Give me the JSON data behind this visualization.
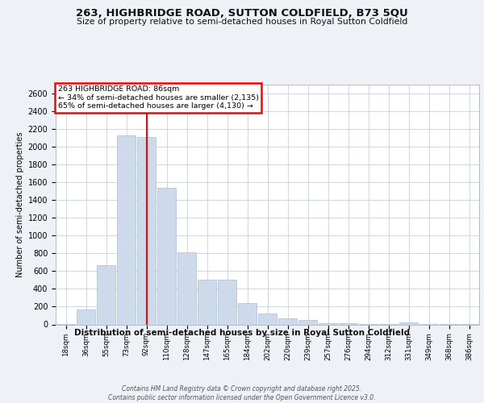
{
  "title": "263, HIGHBRIDGE ROAD, SUTTON COLDFIELD, B73 5QU",
  "subtitle": "Size of property relative to semi-detached houses in Royal Sutton Coldfield",
  "xlabel": "Distribution of semi-detached houses by size in Royal Sutton Coldfield",
  "ylabel": "Number of semi-detached properties",
  "bin_labels": [
    "18sqm",
    "36sqm",
    "55sqm",
    "73sqm",
    "92sqm",
    "110sqm",
    "128sqm",
    "147sqm",
    "165sqm",
    "184sqm",
    "202sqm",
    "220sqm",
    "239sqm",
    "257sqm",
    "276sqm",
    "294sqm",
    "312sqm",
    "331sqm",
    "349sqm",
    "368sqm",
    "386sqm"
  ],
  "bar_values": [
    5,
    170,
    670,
    2130,
    2110,
    1540,
    810,
    500,
    500,
    240,
    125,
    70,
    50,
    15,
    15,
    5,
    5,
    20,
    5,
    5,
    5
  ],
  "bar_color": "#ccdaeb",
  "bar_edge_color": "#a8bfd4",
  "red_line_index": 4,
  "annotation_title": "263 HIGHBRIDGE ROAD: 86sqm",
  "annotation_line1": "← 34% of semi-detached houses are smaller (2,135)",
  "annotation_line2": "65% of semi-detached houses are larger (4,130) →",
  "ylim": [
    0,
    2700
  ],
  "yticks": [
    0,
    200,
    400,
    600,
    800,
    1000,
    1200,
    1400,
    1600,
    1800,
    2000,
    2200,
    2400,
    2600
  ],
  "footer_line1": "Contains HM Land Registry data © Crown copyright and database right 2025.",
  "footer_line2": "Contains public sector information licensed under the Open Government Licence v3.0.",
  "bg_color": "#eef2f7",
  "plot_bg_color": "#ffffff",
  "grid_color": "#c8d0da"
}
